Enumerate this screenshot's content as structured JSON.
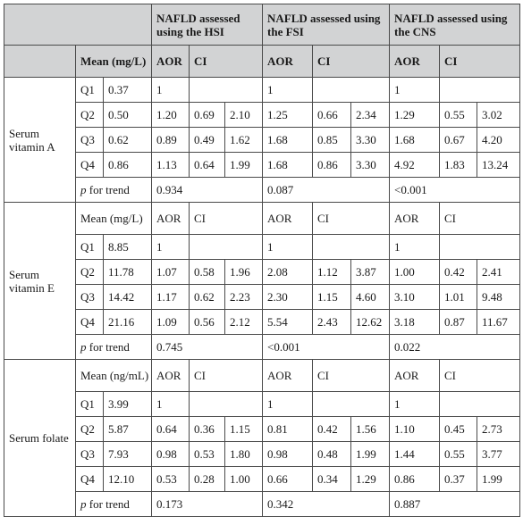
{
  "headers": {
    "hsi": "NAFLD assessed using the HSI",
    "fsi": "NAFLD assessed using the FSI",
    "cns": "NAFLD assessed using the CNS",
    "aor": "AOR",
    "ci": "CI",
    "p_for": "p",
    "trend": " for trend"
  },
  "groups": [
    {
      "nutrient": "Serum vitamin A",
      "mean_label": "Mean (mg/L)",
      "rows": [
        {
          "q": "Q1",
          "mean": "0.37",
          "hsi": [
            "1",
            "",
            ""
          ],
          "fsi": [
            "1",
            "",
            ""
          ],
          "cns": [
            "1",
            "",
            ""
          ]
        },
        {
          "q": "Q2",
          "mean": "0.50",
          "hsi": [
            "1.20",
            "0.69",
            "2.10"
          ],
          "fsi": [
            "1.25",
            "0.66",
            "2.34"
          ],
          "cns": [
            "1.29",
            "0.55",
            "3.02"
          ]
        },
        {
          "q": "Q3",
          "mean": "0.62",
          "hsi": [
            "0.89",
            "0.49",
            "1.62"
          ],
          "fsi": [
            "1.68",
            "0.85",
            "3.30"
          ],
          "cns": [
            "1.68",
            "0.67",
            "4.20"
          ]
        },
        {
          "q": "Q4",
          "mean": "0.86",
          "hsi": [
            "1.13",
            "0.64",
            "1.99"
          ],
          "fsi": [
            "1.68",
            "0.86",
            "3.30"
          ],
          "cns": [
            "4.92",
            "1.83",
            "13.24"
          ]
        }
      ],
      "p_trend": {
        "hsi": "0.934",
        "fsi": "0.087",
        "cns": "<0.001"
      }
    },
    {
      "nutrient": "Serum vitamin E",
      "mean_label": "Mean (mg/L)",
      "rows": [
        {
          "q": "Q1",
          "mean": "8.85",
          "hsi": [
            "1",
            "",
            ""
          ],
          "fsi": [
            "1",
            "",
            ""
          ],
          "cns": [
            "1",
            "",
            ""
          ]
        },
        {
          "q": "Q2",
          "mean": "11.78",
          "hsi": [
            "1.07",
            "0.58",
            "1.96"
          ],
          "fsi": [
            "2.08",
            "1.12",
            "3.87"
          ],
          "cns": [
            "1.00",
            "0.42",
            "2.41"
          ]
        },
        {
          "q": "Q3",
          "mean": "14.42",
          "hsi": [
            "1.17",
            "0.62",
            "2.23"
          ],
          "fsi": [
            "2.30",
            "1.15",
            "4.60"
          ],
          "cns": [
            "3.10",
            "1.01",
            "9.48"
          ]
        },
        {
          "q": "Q4",
          "mean": "21.16",
          "hsi": [
            "1.09",
            "0.56",
            "2.12"
          ],
          "fsi": [
            "5.54",
            "2.43",
            "12.62"
          ],
          "cns": [
            "3.18",
            "0.87",
            "11.67"
          ]
        }
      ],
      "p_trend": {
        "hsi": "0.745",
        "fsi": "<0.001",
        "cns": "0.022"
      }
    },
    {
      "nutrient": "Serum folate",
      "mean_label": "Mean (ng/mL)",
      "rows": [
        {
          "q": "Q1",
          "mean": "3.99",
          "hsi": [
            "1",
            "",
            ""
          ],
          "fsi": [
            "1",
            "",
            ""
          ],
          "cns": [
            "1",
            "",
            ""
          ]
        },
        {
          "q": "Q2",
          "mean": "5.87",
          "hsi": [
            "0.64",
            "0.36",
            "1.15"
          ],
          "fsi": [
            "0.81",
            "0.42",
            "1.56"
          ],
          "cns": [
            "1.10",
            "0.45",
            "2.73"
          ]
        },
        {
          "q": "Q3",
          "mean": "7.93",
          "hsi": [
            "0.98",
            "0.53",
            "1.80"
          ],
          "fsi": [
            "0.98",
            "0.48",
            "1.99"
          ],
          "cns": [
            "1.44",
            "0.55",
            "3.77"
          ]
        },
        {
          "q": "Q4",
          "mean": "12.10",
          "hsi": [
            "0.53",
            "0.28",
            "1.00"
          ],
          "fsi": [
            "0.66",
            "0.34",
            "1.29"
          ],
          "cns": [
            "0.86",
            "0.37",
            "1.99"
          ]
        }
      ],
      "p_trend": {
        "hsi": "0.173",
        "fsi": "0.342",
        "cns": "0.887"
      }
    }
  ]
}
